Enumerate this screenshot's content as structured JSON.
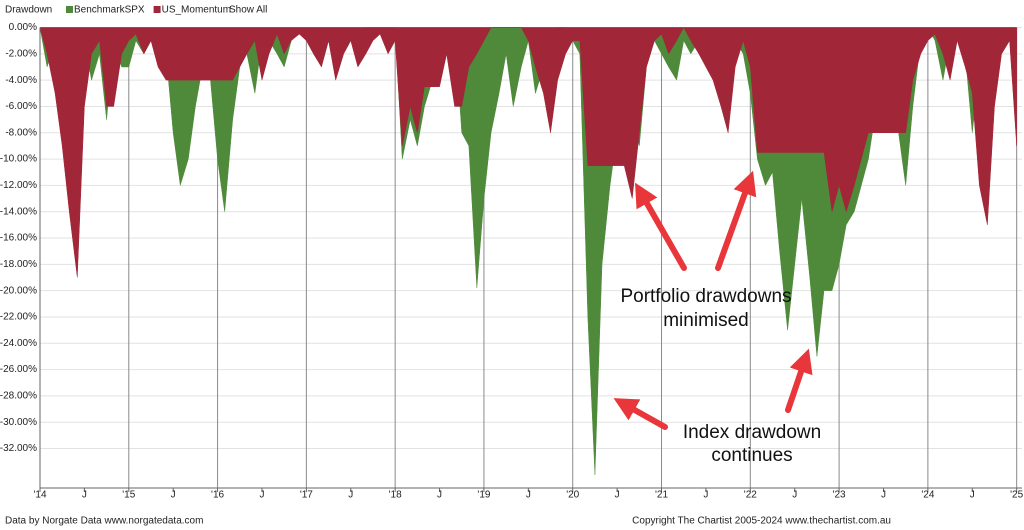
{
  "chart_data": {
    "type": "area",
    "title": "Drawdown",
    "show_all": "Show All",
    "x": [
      2014,
      2014.08,
      2014.17,
      2014.25,
      2014.33,
      2014.42,
      2014.5,
      2014.58,
      2014.67,
      2014.75,
      2014.83,
      2014.92,
      2015,
      2015.08,
      2015.17,
      2015.25,
      2015.33,
      2015.42,
      2015.5,
      2015.58,
      2015.67,
      2015.75,
      2015.83,
      2015.92,
      2016,
      2016.08,
      2016.17,
      2016.25,
      2016.33,
      2016.42,
      2016.5,
      2016.58,
      2016.67,
      2016.75,
      2016.83,
      2016.92,
      2017,
      2017.08,
      2017.17,
      2017.25,
      2017.33,
      2017.42,
      2017.5,
      2017.58,
      2017.67,
      2017.75,
      2017.83,
      2017.92,
      2018,
      2018.08,
      2018.17,
      2018.25,
      2018.33,
      2018.42,
      2018.5,
      2018.58,
      2018.67,
      2018.75,
      2018.83,
      2018.92,
      2019,
      2019.08,
      2019.17,
      2019.25,
      2019.33,
      2019.42,
      2019.5,
      2019.58,
      2019.67,
      2019.75,
      2019.83,
      2019.92,
      2020,
      2020.08,
      2020.17,
      2020.25,
      2020.33,
      2020.42,
      2020.5,
      2020.58,
      2020.67,
      2020.75,
      2020.83,
      2020.92,
      2021,
      2021.08,
      2021.17,
      2021.25,
      2021.33,
      2021.42,
      2021.5,
      2021.58,
      2021.67,
      2021.75,
      2021.83,
      2021.92,
      2022,
      2022.08,
      2022.17,
      2022.25,
      2022.33,
      2022.42,
      2022.5,
      2022.58,
      2022.67,
      2022.75,
      2022.83,
      2022.92,
      2023,
      2023.08,
      2023.17,
      2023.25,
      2023.33,
      2023.42,
      2023.5,
      2023.58,
      2023.67,
      2023.75,
      2023.83,
      2023.92,
      2024,
      2024.08,
      2024.17,
      2024.25,
      2024.33,
      2024.42,
      2024.5,
      2024.58,
      2024.67,
      2024.75,
      2024.83,
      2024.92,
      2025
    ],
    "series": [
      {
        "name": "BenchmarkSPX",
        "color": "#4e8a3a",
        "values": [
          0,
          -3,
          -1,
          -2,
          -1,
          -1,
          -1,
          -4,
          -2,
          -7,
          -1,
          -3,
          -3,
          -1,
          -2,
          -1,
          -1,
          -2,
          -8,
          -12,
          -10,
          -6,
          -3,
          -4,
          -10,
          -14,
          -7,
          -3,
          -2,
          -5,
          -1,
          -1,
          -2,
          -3,
          -1,
          0,
          -1,
          0,
          -2,
          -1,
          -1,
          0,
          -1,
          -1,
          0,
          0,
          0,
          0,
          0,
          -10,
          -7,
          -9,
          -6,
          -4,
          -3,
          -1,
          0,
          -8,
          -9,
          -19.8,
          -13,
          -8,
          -5,
          -2,
          -6,
          -3,
          -1,
          -5,
          -3,
          -2,
          0,
          0,
          -1,
          -2,
          -22,
          -34,
          -18,
          -12,
          -8,
          -5,
          -7,
          -9,
          -3,
          -1,
          -2,
          -3,
          -4,
          -1,
          -2,
          -1,
          -1,
          -1,
          -5,
          -2,
          -1,
          -2,
          -5,
          -10,
          -12,
          -11,
          -17,
          -23,
          -18,
          -13,
          -19,
          -25,
          -20,
          -20,
          -18,
          -15,
          -14,
          -12,
          -10,
          -6,
          -3,
          -5,
          -8,
          -12,
          -6,
          -1,
          0,
          -1,
          -4,
          -1,
          -1,
          -2,
          -8,
          -3,
          -1,
          0,
          -2,
          -1,
          -3
        ]
      },
      {
        "name": "US_Momentum",
        "color": "#a02638",
        "values": [
          0,
          -2,
          -5,
          -9,
          -14,
          -19,
          -6,
          -2,
          -1,
          -6,
          -6,
          -2,
          -1,
          -0.5,
          -2,
          -1,
          -3,
          -4,
          -4,
          -4,
          -4,
          -4,
          -4,
          -4,
          -4,
          -4,
          -4,
          -3,
          -2,
          -1,
          -4,
          -2,
          -0.5,
          -2,
          -1,
          -0.5,
          -1,
          -2,
          -3,
          -1,
          -4,
          -2,
          -1,
          -3,
          -2,
          -1,
          -0.5,
          -2,
          -1,
          -9,
          -6,
          -8,
          -4.5,
          -4.5,
          -4.5,
          -2,
          -6,
          -6,
          -3,
          -2,
          -1,
          0,
          0,
          0,
          0,
          0,
          -1,
          -3,
          -5,
          -8,
          -4,
          -2,
          -1,
          -1,
          -10.5,
          -10.5,
          -10.5,
          -10.5,
          -10.5,
          -10.5,
          -13,
          -8,
          -3,
          -1,
          -0.5,
          -2,
          -1,
          0,
          -1,
          -2,
          -3,
          -4,
          -6,
          -8,
          -3,
          -1,
          -3,
          -9.5,
          -9.5,
          -9.5,
          -9.5,
          -9.5,
          -9.5,
          -9.5,
          -9.5,
          -9.5,
          -9.5,
          -14,
          -12,
          -14,
          -12,
          -10,
          -8,
          -8,
          -8,
          -8,
          -8,
          -8,
          -4,
          -2,
          -1,
          -0.5,
          -2,
          -4,
          -1,
          -3,
          -5,
          -12,
          -15,
          -6,
          -2,
          -1,
          -9
        ]
      }
    ],
    "xlim": [
      2014,
      2025.06
    ],
    "xticks": [
      {
        "value": 2014,
        "label": "'14"
      },
      {
        "value": 2014.5,
        "label": "J"
      },
      {
        "value": 2015,
        "label": "'15"
      },
      {
        "value": 2015.5,
        "label": "J"
      },
      {
        "value": 2016,
        "label": "'16"
      },
      {
        "value": 2016.5,
        "label": "J"
      },
      {
        "value": 2017,
        "label": "'17"
      },
      {
        "value": 2017.5,
        "label": "J"
      },
      {
        "value": 2018,
        "label": "'18"
      },
      {
        "value": 2018.5,
        "label": "J"
      },
      {
        "value": 2019,
        "label": "'19"
      },
      {
        "value": 2019.5,
        "label": "J"
      },
      {
        "value": 2020,
        "label": "'20"
      },
      {
        "value": 2020.5,
        "label": "J"
      },
      {
        "value": 2021,
        "label": "'21"
      },
      {
        "value": 2021.5,
        "label": "J"
      },
      {
        "value": 2022,
        "label": "'22"
      },
      {
        "value": 2022.5,
        "label": "J"
      },
      {
        "value": 2023,
        "label": "'23"
      },
      {
        "value": 2023.5,
        "label": "J"
      },
      {
        "value": 2024,
        "label": "'24"
      },
      {
        "value": 2024.5,
        "label": "J"
      },
      {
        "value": 2025,
        "label": "'25"
      }
    ],
    "ylim": [
      -35,
      0
    ],
    "yticks": [
      {
        "value": 0,
        "label": "0.00%"
      },
      {
        "value": -2,
        "label": "-2.00%"
      },
      {
        "value": -4,
        "label": "-4.00%"
      },
      {
        "value": -6,
        "label": "-6.00%"
      },
      {
        "value": -8,
        "label": "-8.00%"
      },
      {
        "value": -10,
        "label": "-10.00%"
      },
      {
        "value": -12,
        "label": "-12.00%"
      },
      {
        "value": -14,
        "label": "-14.00%"
      },
      {
        "value": -16,
        "label": "-16.00%"
      },
      {
        "value": -18,
        "label": "-18.00%"
      },
      {
        "value": -20,
        "label": "-20.00%"
      },
      {
        "value": -22,
        "label": "-22.00%"
      },
      {
        "value": -24,
        "label": "-24.00%"
      },
      {
        "value": -26,
        "label": "-26.00%"
      },
      {
        "value": -28,
        "label": "-28.00%"
      },
      {
        "value": -30,
        "label": "-30.00%"
      },
      {
        "value": -32,
        "label": "-32.00%"
      }
    ],
    "grid": true,
    "annotations": [
      [
        "Portfolio drawdowns",
        "minimised"
      ],
      [
        "Index drawdown",
        "continues"
      ]
    ],
    "credits": [
      "Data by Norgate Data  www.norgatedata.com",
      "Copyright The Chartist 2005-2024  www.thechartist.com.au"
    ]
  }
}
